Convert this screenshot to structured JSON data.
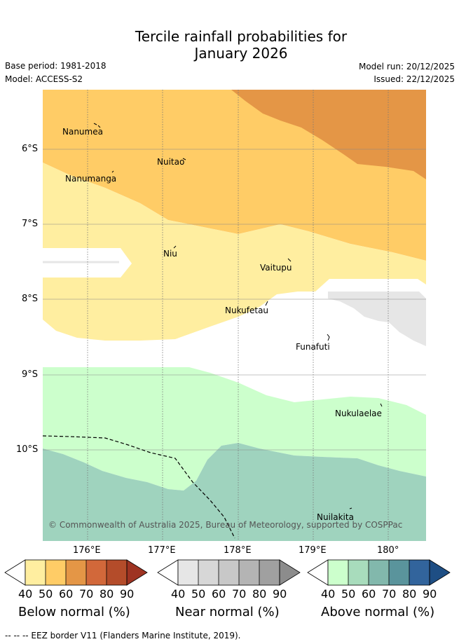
{
  "title_line1": "Tercile rainfall probabilities for",
  "title_line2": "January 2026",
  "base_period": "Base period: 1981-2018",
  "model": "Model: ACCESS-S2",
  "model_run": "Model run: 20/12/2025",
  "issued": "Issued: 22/12/2025",
  "places": {
    "nanumea": "Nanumea",
    "nuitao": "Nuitao",
    "nanumanga": "Nanumanga",
    "niu": "Niu",
    "vaitupu": "Vaitupu",
    "nukufetau": "Nukufetau",
    "funafuti": "Funafuti",
    "nukulaelae": "Nukulaelae",
    "nuilakita": "Nuilakita"
  },
  "lat_labels": [
    "6°S",
    "7°S",
    "8°S",
    "9°S",
    "10°S"
  ],
  "lon_labels": [
    "176°E",
    "177°E",
    "178°E",
    "179°E",
    "180°"
  ],
  "copyright": "© Commonwealth of Australia 2025, Bureau of Meteorology, supported by COSPPac",
  "colorbars": {
    "ticks": [
      "40",
      "50",
      "60",
      "70",
      "80",
      "90"
    ],
    "below": {
      "title": "Below normal (%)",
      "colors": [
        "#ffeea0",
        "#ffcc66",
        "#e49646",
        "#d2683a",
        "#b44c2a"
      ],
      "arrow_color": "#9e3322"
    },
    "near": {
      "title": "Near normal (%)",
      "colors": [
        "#e6e6e6",
        "#d7d7d7",
        "#c8c8c8",
        "#b4b4b4",
        "#a0a0a0"
      ],
      "arrow_color": "#8c8c8c"
    },
    "above": {
      "title": "Above normal (%)",
      "colors": [
        "#ccffcc",
        "#a8dcbc",
        "#82b8ac",
        "#5a949c",
        "#32649c"
      ],
      "arrow_color": "#1e4e84"
    }
  },
  "footer": "-- -- -- EEZ border V11 (Flanders Marine Institute, 2019)."
}
